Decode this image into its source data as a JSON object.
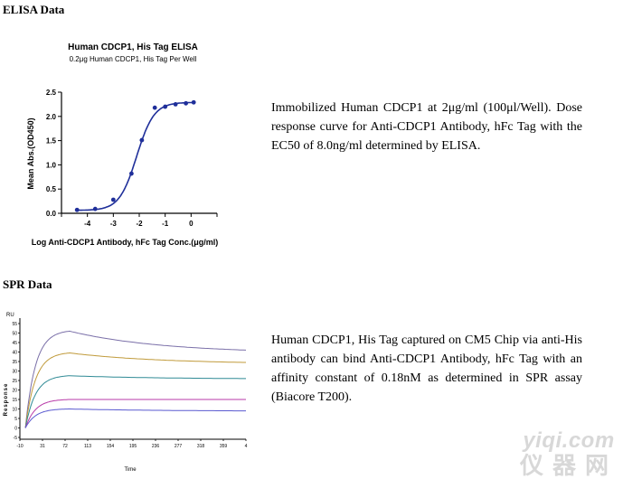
{
  "elisa": {
    "section_title": "ELISA Data",
    "description": "Immobilized Human CDCP1 at 2μg/ml (100μl/Well). Dose response curve for Anti-CDCP1 Antibody, hFc Tag with the EC50 of 8.0ng/ml determined by ELISA."
  },
  "spr": {
    "section_title": "SPR Data",
    "description": "Human CDCP1, His Tag captured on CM5 Chip via anti-His antibody can bind Anti-CDCP1 Antibody, hFc Tag with an affinity constant of 0.18nM as determined in SPR assay (Biacore T200)."
  },
  "watermark": {
    "line1": "yiqi.com",
    "line2": "仪器网"
  },
  "chart_data": [
    {
      "type": "scatter",
      "title": "Human CDCP1, His Tag ELISA",
      "subtitle": "0.2μg Human CDCP1, His Tag Per Well",
      "xlabel": "Log Anti-CDCP1 Antibody, hFc Tag Conc.(μg/ml)",
      "ylabel": "Mean Abs.(OD450)",
      "xlim": [
        -5,
        1
      ],
      "ylim": [
        0,
        2.5
      ],
      "x_ticks": [
        "-4",
        "-3",
        "-2",
        "-1",
        "0"
      ],
      "y_ticks": [
        "0.0",
        "0.5",
        "1.0",
        "1.5",
        "2.0",
        "2.5"
      ],
      "color": "#1f2f9a",
      "points": {
        "x": [
          -4.4,
          -3.7,
          -3.0,
          -2.3,
          -1.9,
          -1.4,
          -1.0,
          -0.6,
          -0.2,
          0.1
        ],
        "y": [
          0.07,
          0.09,
          0.28,
          0.82,
          1.51,
          2.18,
          2.2,
          2.25,
          2.27,
          2.29
        ]
      },
      "fit": {
        "bottom": 0.06,
        "top": 2.29,
        "log_ec50": -2.1,
        "hill": 1.3
      }
    },
    {
      "type": "line",
      "xlabel": "Time",
      "ylabel": "Response",
      "ylabel_unit": "RU",
      "xlim": [
        -10,
        400
      ],
      "ylim": [
        -5,
        55
      ],
      "x_ticks": [
        "-10",
        "31",
        "72",
        "113",
        "154",
        "195",
        "236",
        "277",
        "318",
        "359",
        "4"
      ],
      "y_ticks": [
        "-5",
        "0",
        "5",
        "10",
        "15",
        "20",
        "25",
        "30",
        "35",
        "40",
        "45",
        "50",
        "55"
      ],
      "association_end": 80,
      "end_time": 400,
      "series": [
        {
          "color": "#7a6fa8",
          "association_peak": 51,
          "dissociation_end": 41
        },
        {
          "color": "#c09a3a",
          "association_peak": 39.5,
          "dissociation_end": 34.5
        },
        {
          "color": "#2f8a95",
          "association_peak": 27.5,
          "dissociation_end": 26
        },
        {
          "color": "#b83aa8",
          "association_peak": 15,
          "dissociation_end": 15
        },
        {
          "color": "#5a5ad0",
          "association_peak": 10,
          "dissociation_end": 9
        }
      ]
    }
  ]
}
